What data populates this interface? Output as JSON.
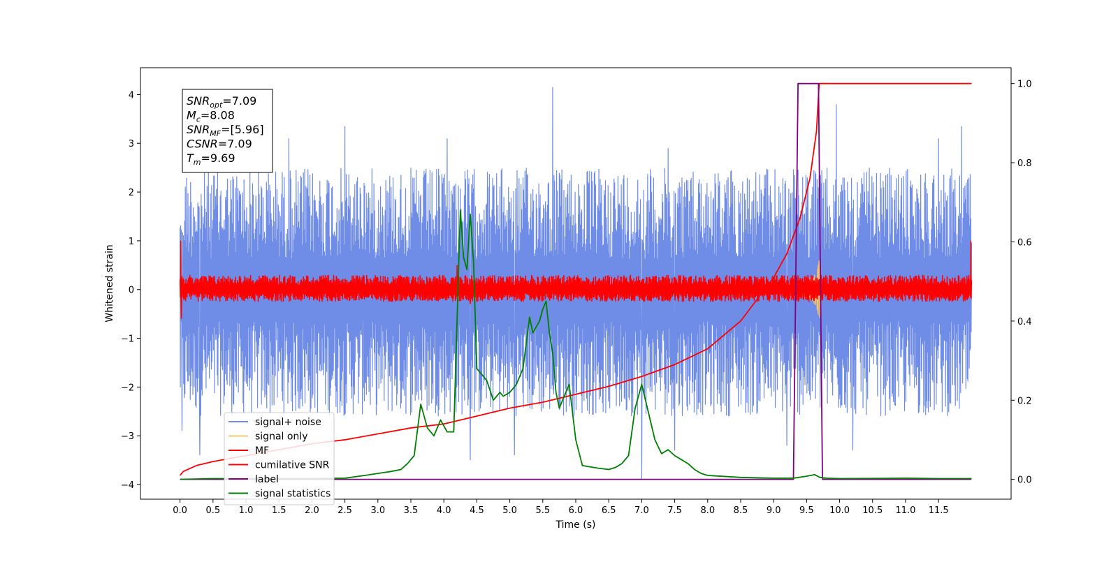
{
  "chart_data": {
    "type": "line",
    "xlabel": "Time (s)",
    "ylabel": "Whitened strain",
    "xlim": [
      -0.6,
      12.6
    ],
    "ylim": [
      -4.3,
      4.55
    ],
    "ylim_right": [
      -0.05,
      1.04
    ],
    "xticks": [
      0.0,
      0.5,
      1.0,
      1.5,
      2.0,
      2.5,
      3.0,
      3.5,
      4.0,
      4.5,
      5.0,
      5.5,
      6.0,
      6.5,
      7.0,
      7.5,
      8.0,
      8.5,
      9.0,
      9.5,
      10.0,
      10.5,
      11.0,
      11.5
    ],
    "xtick_labels": [
      "0.0",
      "0.5",
      "1.0",
      "1.5",
      "2.0",
      "2.5",
      "3.0",
      "3.5",
      "4.0",
      "4.5",
      "5.0",
      "5.5",
      "6.0",
      "6.5",
      "7.0",
      "7.5",
      "8.0",
      "8.5",
      "9.0",
      "9.5",
      "10.0",
      "10.5",
      "11.0",
      "11.5"
    ],
    "yticks_left": [
      -4,
      -3,
      -2,
      -1,
      0,
      1,
      2,
      3,
      4
    ],
    "ytick_labels_left": [
      "−4",
      "−3",
      "−2",
      "−1",
      "0",
      "1",
      "2",
      "3",
      "4"
    ],
    "yticks_right": [
      0.0,
      0.2,
      0.4,
      0.6,
      0.8,
      1.0
    ],
    "ytick_labels_right": [
      "0.0",
      "0.2",
      "0.4",
      "0.6",
      "0.8",
      "1.0"
    ],
    "grid": false,
    "legend_placement": "lower-left",
    "series": [
      {
        "name": "signal+ noise",
        "axis": "left",
        "color": "#6f8ce6",
        "render": "band",
        "x_range": [
          0.0,
          12.0
        ],
        "band_low": -2.6,
        "band_high": 2.5,
        "spikes": [
          [
            0.03,
            -2.9
          ],
          [
            0.3,
            -3.4
          ],
          [
            1.65,
            3.1
          ],
          [
            2.5,
            3.35
          ],
          [
            4.05,
            3.1
          ],
          [
            4.4,
            -3.5
          ],
          [
            5.07,
            -3.4
          ],
          [
            5.65,
            4.15
          ],
          [
            7.0,
            -3.9
          ],
          [
            7.4,
            2.9
          ],
          [
            7.5,
            -3.3
          ],
          [
            9.2,
            -3.2
          ],
          [
            9.95,
            3.8
          ],
          [
            10.2,
            -3.3
          ],
          [
            11.5,
            3.1
          ],
          [
            11.85,
            3.35
          ]
        ]
      },
      {
        "name": "signal only",
        "axis": "left",
        "color": "#f5c56e",
        "render": "chirp",
        "x_range": [
          8.6,
          9.69
        ],
        "amplitude_end": 0.75
      },
      {
        "name": "MF",
        "axis": "left",
        "color": "#ff0000",
        "render": "band",
        "x_range": [
          0.0,
          12.0
        ],
        "band_low": -0.25,
        "band_high": 0.3,
        "spikes": [
          [
            0.01,
            1.0
          ],
          [
            0.02,
            -0.6
          ],
          [
            4.2,
            0.5
          ],
          [
            4.4,
            -0.3
          ],
          [
            11.99,
            1.0
          ]
        ]
      },
      {
        "name": "cumilative SNR",
        "axis": "right",
        "color": "#ff0000",
        "render": "line",
        "x": [
          0.0,
          0.05,
          0.25,
          0.5,
          1.0,
          1.5,
          2.0,
          2.5,
          3.0,
          3.5,
          4.0,
          4.5,
          5.0,
          5.5,
          6.0,
          6.5,
          7.0,
          7.5,
          8.0,
          8.5,
          9.0,
          9.2,
          9.4,
          9.55,
          9.65,
          9.69,
          12.0
        ],
        "y": [
          0.01,
          0.02,
          0.035,
          0.045,
          0.06,
          0.075,
          0.09,
          0.1,
          0.115,
          0.13,
          0.14,
          0.16,
          0.18,
          0.195,
          0.215,
          0.235,
          0.26,
          0.29,
          0.33,
          0.4,
          0.51,
          0.57,
          0.66,
          0.76,
          0.88,
          1.0,
          1.0
        ]
      },
      {
        "name": "label",
        "axis": "right",
        "color": "#800080",
        "render": "line",
        "x": [
          0.0,
          9.3,
          9.37,
          9.68,
          9.74,
          12.0
        ],
        "y": [
          0.0,
          0.0,
          1.0,
          1.0,
          0.0,
          0.0
        ]
      },
      {
        "name": "signal statistics",
        "axis": "right",
        "color": "#008000",
        "render": "line",
        "x": [
          0.0,
          0.5,
          1.0,
          1.5,
          2.0,
          2.5,
          2.8,
          3.0,
          3.2,
          3.35,
          3.45,
          3.55,
          3.65,
          3.75,
          3.85,
          3.95,
          4.05,
          4.15,
          4.25,
          4.3,
          4.35,
          4.4,
          4.45,
          4.5,
          4.55,
          4.65,
          4.75,
          4.85,
          4.9,
          5.0,
          5.1,
          5.2,
          5.3,
          5.35,
          5.45,
          5.5,
          5.55,
          5.6,
          5.65,
          5.7,
          5.75,
          5.8,
          5.9,
          6.0,
          6.1,
          6.2,
          6.35,
          6.5,
          6.6,
          6.7,
          6.8,
          6.9,
          7.0,
          7.1,
          7.2,
          7.3,
          7.4,
          7.5,
          7.6,
          7.7,
          7.8,
          7.9,
          8.0,
          8.5,
          9.0,
          9.3,
          9.5,
          9.62,
          9.7,
          9.8,
          10.0,
          11.0,
          11.5,
          12.0
        ],
        "y": [
          0.0,
          0.002,
          0.002,
          0.002,
          0.002,
          0.003,
          0.01,
          0.015,
          0.02,
          0.025,
          0.04,
          0.06,
          0.19,
          0.13,
          0.11,
          0.15,
          0.12,
          0.12,
          0.68,
          0.56,
          0.53,
          0.67,
          0.55,
          0.28,
          0.27,
          0.25,
          0.2,
          0.22,
          0.21,
          0.22,
          0.24,
          0.28,
          0.41,
          0.37,
          0.4,
          0.43,
          0.45,
          0.37,
          0.32,
          0.22,
          0.18,
          0.2,
          0.24,
          0.1,
          0.035,
          0.032,
          0.028,
          0.025,
          0.03,
          0.04,
          0.06,
          0.18,
          0.24,
          0.17,
          0.1,
          0.065,
          0.075,
          0.06,
          0.05,
          0.04,
          0.025,
          0.015,
          0.01,
          0.005,
          0.003,
          0.003,
          0.008,
          0.012,
          0.005,
          0.003,
          0.002,
          0.003,
          0.002,
          0.002
        ]
      }
    ],
    "annotation_lines": [
      {
        "base": "SNR",
        "sub": "opt",
        "value": "=7.09"
      },
      {
        "base": "M",
        "sub": "c",
        "value": "=8.08"
      },
      {
        "base": "SNR",
        "sub": "MF",
        "value": "=[5.96]"
      },
      {
        "base": "CSNR",
        "sub": "",
        "value": "=7.09"
      },
      {
        "base": "T",
        "sub": "m",
        "value": "=9.69"
      }
    ]
  }
}
